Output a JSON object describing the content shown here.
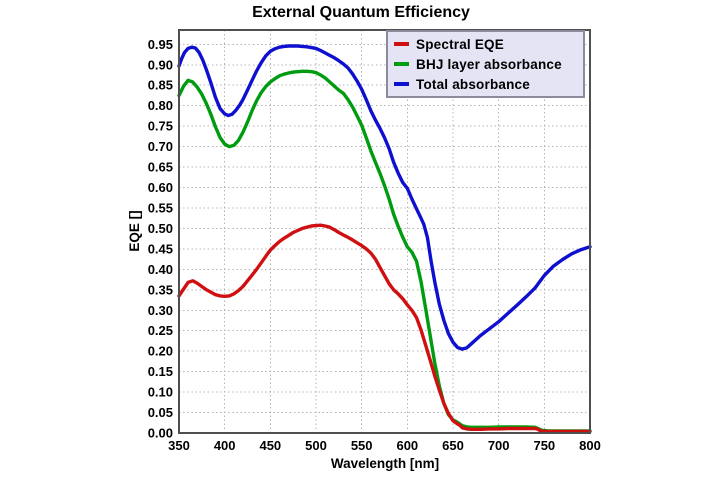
{
  "figure": {
    "background": "#ffffff",
    "plot_background": "#ffffff",
    "grid_color": "#b4b4b4",
    "frame_color": "#4f4f4f"
  },
  "chart_data": {
    "type": "line",
    "title": "External Quantum Efficiency",
    "xlabel": "Wavelength [nm]",
    "ylabel": "EQE []",
    "xlim": [
      350,
      800
    ],
    "ylim": [
      0,
      0.985
    ],
    "x_ticks": [
      350,
      400,
      450,
      500,
      550,
      600,
      650,
      700,
      750,
      800
    ],
    "y_ticks": [
      "0.00",
      "0.05",
      "0.10",
      "0.15",
      "0.20",
      "0.25",
      "0.30",
      "0.35",
      "0.40",
      "0.45",
      "0.50",
      "0.55",
      "0.60",
      "0.65",
      "0.70",
      "0.75",
      "0.80",
      "0.85",
      "0.90",
      "0.95"
    ],
    "grid": "dotted",
    "legend_position": "top-right-inside",
    "legend_background": "#e4e4f4",
    "legend_border": "#8b8b9b",
    "series": [
      {
        "name": "Spectral EQE",
        "color": "#d01010",
        "points": [
          [
            350,
            0.335
          ],
          [
            355,
            0.352
          ],
          [
            360,
            0.368
          ],
          [
            365,
            0.372
          ],
          [
            370,
            0.366
          ],
          [
            375,
            0.358
          ],
          [
            380,
            0.35
          ],
          [
            385,
            0.344
          ],
          [
            390,
            0.338
          ],
          [
            395,
            0.335
          ],
          [
            400,
            0.334
          ],
          [
            405,
            0.335
          ],
          [
            410,
            0.34
          ],
          [
            415,
            0.348
          ],
          [
            420,
            0.358
          ],
          [
            425,
            0.372
          ],
          [
            430,
            0.386
          ],
          [
            435,
            0.4
          ],
          [
            440,
            0.416
          ],
          [
            445,
            0.432
          ],
          [
            450,
            0.447
          ],
          [
            455,
            0.458
          ],
          [
            460,
            0.468
          ],
          [
            465,
            0.476
          ],
          [
            470,
            0.483
          ],
          [
            475,
            0.49
          ],
          [
            480,
            0.495
          ],
          [
            485,
            0.5
          ],
          [
            490,
            0.503
          ],
          [
            495,
            0.506
          ],
          [
            500,
            0.507
          ],
          [
            505,
            0.508
          ],
          [
            510,
            0.506
          ],
          [
            515,
            0.503
          ],
          [
            520,
            0.497
          ],
          [
            525,
            0.49
          ],
          [
            530,
            0.484
          ],
          [
            535,
            0.478
          ],
          [
            540,
            0.472
          ],
          [
            545,
            0.465
          ],
          [
            550,
            0.458
          ],
          [
            555,
            0.45
          ],
          [
            560,
            0.44
          ],
          [
            565,
            0.425
          ],
          [
            570,
            0.405
          ],
          [
            575,
            0.385
          ],
          [
            580,
            0.365
          ],
          [
            585,
            0.35
          ],
          [
            590,
            0.34
          ],
          [
            595,
            0.328
          ],
          [
            600,
            0.313
          ],
          [
            605,
            0.3
          ],
          [
            610,
            0.282
          ],
          [
            615,
            0.252
          ],
          [
            620,
            0.215
          ],
          [
            625,
            0.178
          ],
          [
            630,
            0.14
          ],
          [
            635,
            0.105
          ],
          [
            640,
            0.072
          ],
          [
            645,
            0.048
          ],
          [
            650,
            0.03
          ],
          [
            655,
            0.022
          ],
          [
            658,
            0.018
          ],
          [
            660,
            0.013
          ],
          [
            665,
            0.01
          ],
          [
            670,
            0.009
          ],
          [
            680,
            0.009
          ],
          [
            690,
            0.01
          ],
          [
            700,
            0.01
          ],
          [
            710,
            0.011
          ],
          [
            720,
            0.011
          ],
          [
            730,
            0.011
          ],
          [
            740,
            0.011
          ],
          [
            743,
            0.009
          ],
          [
            746,
            0.005
          ],
          [
            750,
            0.004
          ],
          [
            760,
            0.004
          ],
          [
            775,
            0.004
          ],
          [
            790,
            0.004
          ],
          [
            800,
            0.004
          ]
        ]
      },
      {
        "name": "BHJ layer absorbance",
        "color": "#009c10",
        "points": [
          [
            350,
            0.825
          ],
          [
            355,
            0.848
          ],
          [
            360,
            0.862
          ],
          [
            365,
            0.858
          ],
          [
            370,
            0.845
          ],
          [
            375,
            0.828
          ],
          [
            380,
            0.805
          ],
          [
            385,
            0.778
          ],
          [
            390,
            0.748
          ],
          [
            395,
            0.722
          ],
          [
            400,
            0.706
          ],
          [
            405,
            0.7
          ],
          [
            410,
            0.703
          ],
          [
            415,
            0.715
          ],
          [
            420,
            0.735
          ],
          [
            425,
            0.76
          ],
          [
            430,
            0.788
          ],
          [
            435,
            0.812
          ],
          [
            440,
            0.832
          ],
          [
            445,
            0.847
          ],
          [
            450,
            0.858
          ],
          [
            455,
            0.866
          ],
          [
            460,
            0.873
          ],
          [
            465,
            0.877
          ],
          [
            470,
            0.88
          ],
          [
            475,
            0.882
          ],
          [
            480,
            0.883
          ],
          [
            485,
            0.884
          ],
          [
            490,
            0.884
          ],
          [
            495,
            0.883
          ],
          [
            500,
            0.881
          ],
          [
            505,
            0.875
          ],
          [
            510,
            0.868
          ],
          [
            515,
            0.858
          ],
          [
            520,
            0.848
          ],
          [
            525,
            0.838
          ],
          [
            530,
            0.83
          ],
          [
            535,
            0.815
          ],
          [
            540,
            0.797
          ],
          [
            545,
            0.775
          ],
          [
            550,
            0.752
          ],
          [
            555,
            0.722
          ],
          [
            560,
            0.69
          ],
          [
            565,
            0.662
          ],
          [
            570,
            0.635
          ],
          [
            575,
            0.605
          ],
          [
            580,
            0.572
          ],
          [
            585,
            0.535
          ],
          [
            590,
            0.505
          ],
          [
            595,
            0.478
          ],
          [
            600,
            0.455
          ],
          [
            605,
            0.442
          ],
          [
            610,
            0.42
          ],
          [
            615,
            0.37
          ],
          [
            620,
            0.305
          ],
          [
            625,
            0.238
          ],
          [
            630,
            0.172
          ],
          [
            635,
            0.115
          ],
          [
            640,
            0.072
          ],
          [
            645,
            0.045
          ],
          [
            650,
            0.032
          ],
          [
            655,
            0.026
          ],
          [
            660,
            0.018
          ],
          [
            665,
            0.015
          ],
          [
            670,
            0.014
          ],
          [
            680,
            0.014
          ],
          [
            690,
            0.014
          ],
          [
            700,
            0.015
          ],
          [
            710,
            0.015
          ],
          [
            720,
            0.015
          ],
          [
            730,
            0.015
          ],
          [
            740,
            0.014
          ],
          [
            744,
            0.01
          ],
          [
            748,
            0.006
          ],
          [
            755,
            0.005
          ],
          [
            770,
            0.005
          ],
          [
            785,
            0.005
          ],
          [
            800,
            0.005
          ]
        ]
      },
      {
        "name": "Total absorbance",
        "color": "#0f0fd0",
        "points": [
          [
            350,
            0.897
          ],
          [
            353,
            0.915
          ],
          [
            356,
            0.93
          ],
          [
            360,
            0.94
          ],
          [
            364,
            0.943
          ],
          [
            368,
            0.941
          ],
          [
            372,
            0.93
          ],
          [
            376,
            0.912
          ],
          [
            380,
            0.888
          ],
          [
            385,
            0.855
          ],
          [
            390,
            0.82
          ],
          [
            395,
            0.793
          ],
          [
            400,
            0.78
          ],
          [
            404,
            0.776
          ],
          [
            408,
            0.779
          ],
          [
            412,
            0.788
          ],
          [
            416,
            0.8
          ],
          [
            420,
            0.815
          ],
          [
            425,
            0.838
          ],
          [
            430,
            0.862
          ],
          [
            435,
            0.885
          ],
          [
            440,
            0.905
          ],
          [
            445,
            0.922
          ],
          [
            450,
            0.933
          ],
          [
            455,
            0.939
          ],
          [
            460,
            0.943
          ],
          [
            465,
            0.945
          ],
          [
            470,
            0.946
          ],
          [
            475,
            0.946
          ],
          [
            480,
            0.946
          ],
          [
            485,
            0.945
          ],
          [
            490,
            0.944
          ],
          [
            495,
            0.942
          ],
          [
            500,
            0.94
          ],
          [
            505,
            0.935
          ],
          [
            510,
            0.929
          ],
          [
            515,
            0.923
          ],
          [
            520,
            0.917
          ],
          [
            525,
            0.91
          ],
          [
            530,
            0.902
          ],
          [
            535,
            0.892
          ],
          [
            540,
            0.878
          ],
          [
            545,
            0.86
          ],
          [
            550,
            0.84
          ],
          [
            555,
            0.815
          ],
          [
            560,
            0.788
          ],
          [
            565,
            0.765
          ],
          [
            570,
            0.745
          ],
          [
            575,
            0.722
          ],
          [
            580,
            0.695
          ],
          [
            585,
            0.662
          ],
          [
            590,
            0.635
          ],
          [
            595,
            0.612
          ],
          [
            600,
            0.598
          ],
          [
            605,
            0.572
          ],
          [
            610,
            0.548
          ],
          [
            615,
            0.525
          ],
          [
            618,
            0.51
          ],
          [
            622,
            0.478
          ],
          [
            626,
            0.42
          ],
          [
            630,
            0.37
          ],
          [
            635,
            0.315
          ],
          [
            640,
            0.275
          ],
          [
            645,
            0.243
          ],
          [
            650,
            0.222
          ],
          [
            655,
            0.209
          ],
          [
            660,
            0.205
          ],
          [
            665,
            0.208
          ],
          [
            670,
            0.218
          ],
          [
            675,
            0.228
          ],
          [
            680,
            0.238
          ],
          [
            690,
            0.255
          ],
          [
            700,
            0.272
          ],
          [
            710,
            0.292
          ],
          [
            720,
            0.312
          ],
          [
            730,
            0.333
          ],
          [
            740,
            0.355
          ],
          [
            750,
            0.385
          ],
          [
            760,
            0.408
          ],
          [
            770,
            0.424
          ],
          [
            780,
            0.438
          ],
          [
            790,
            0.448
          ],
          [
            800,
            0.455
          ]
        ]
      }
    ]
  }
}
